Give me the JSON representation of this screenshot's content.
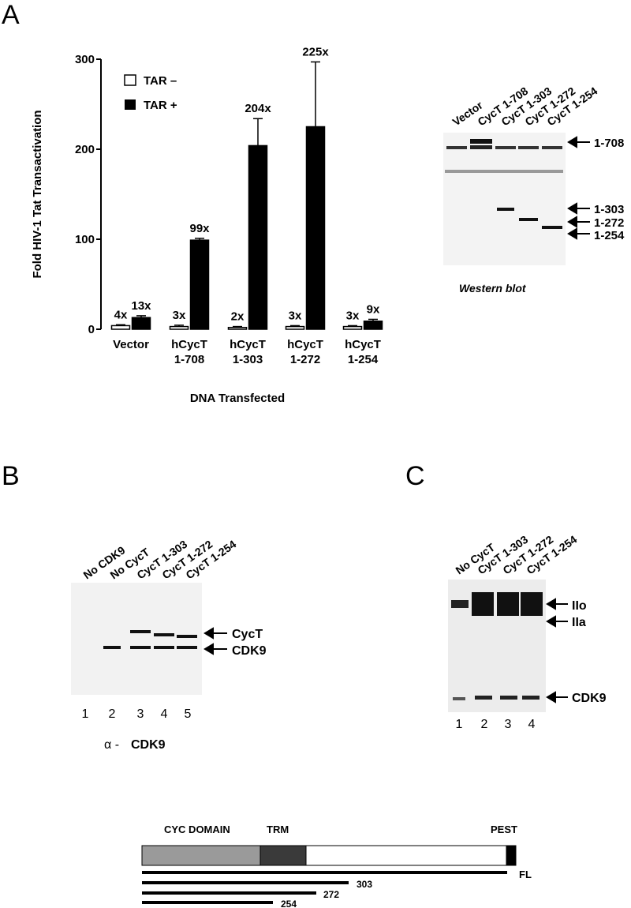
{
  "panel_a": {
    "letter": "A",
    "chart_data": {
      "type": "bar",
      "ylabel": "Fold HIV-1 Tat Transactivation",
      "xlabel": "DNA Transfected",
      "ylim": [
        0,
        300
      ],
      "yticks": [
        "0",
        "100",
        "200",
        "300"
      ],
      "categories": [
        [
          "Vector"
        ],
        [
          "hCycT",
          "1-708"
        ],
        [
          "hCycT",
          "1-303"
        ],
        [
          "hCycT",
          "1-272"
        ],
        [
          "hCycT",
          "1-254"
        ]
      ],
      "series": [
        {
          "name": "TAR –",
          "fill": "#ffffff",
          "values": [
            4,
            3,
            2,
            3,
            3
          ],
          "errors": [
            1,
            1.5,
            1,
            1,
            1
          ],
          "labels": [
            "4x",
            "3x",
            "2x",
            "3x",
            "3x"
          ]
        },
        {
          "name": "TAR +",
          "fill": "#000000",
          "values": [
            13,
            99,
            204,
            225,
            9
          ],
          "errors": [
            2,
            2,
            30,
            72,
            2
          ],
          "labels": [
            "13x",
            "99x",
            "204x",
            "225x",
            "9x"
          ]
        }
      ]
    },
    "western": {
      "caption": "Western blot",
      "lanes": [
        "Vector",
        "CycT 1-708",
        "CycT 1-303",
        "CycT 1-272",
        "CycT 1-254"
      ],
      "markers": [
        "1-708",
        "1-303",
        "1-272",
        "1-254"
      ]
    }
  },
  "panel_b": {
    "letter": "B",
    "lanes": [
      "No CDK9",
      "No CycT",
      "CycT 1-303",
      "CycT 1-272",
      "CycT 1-254"
    ],
    "lane_numbers": [
      "1",
      "2",
      "3",
      "4",
      "5"
    ],
    "markers": [
      "CycT",
      "CDK9"
    ],
    "antibody_prefix": "α -",
    "antibody_name": "CDK9"
  },
  "panel_c": {
    "letter": "C",
    "lanes": [
      "No CycT",
      "CycT 1-303",
      "CycT 1-272",
      "CycT 1-254"
    ],
    "lane_numbers": [
      "1",
      "2",
      "3",
      "4"
    ],
    "markers": [
      "IIo",
      "IIa",
      "CDK9"
    ]
  },
  "schematic": {
    "domains": [
      "CYC DOMAIN",
      "TRM",
      "PEST"
    ],
    "constructs": [
      "FL",
      "303",
      "272",
      "254"
    ]
  }
}
